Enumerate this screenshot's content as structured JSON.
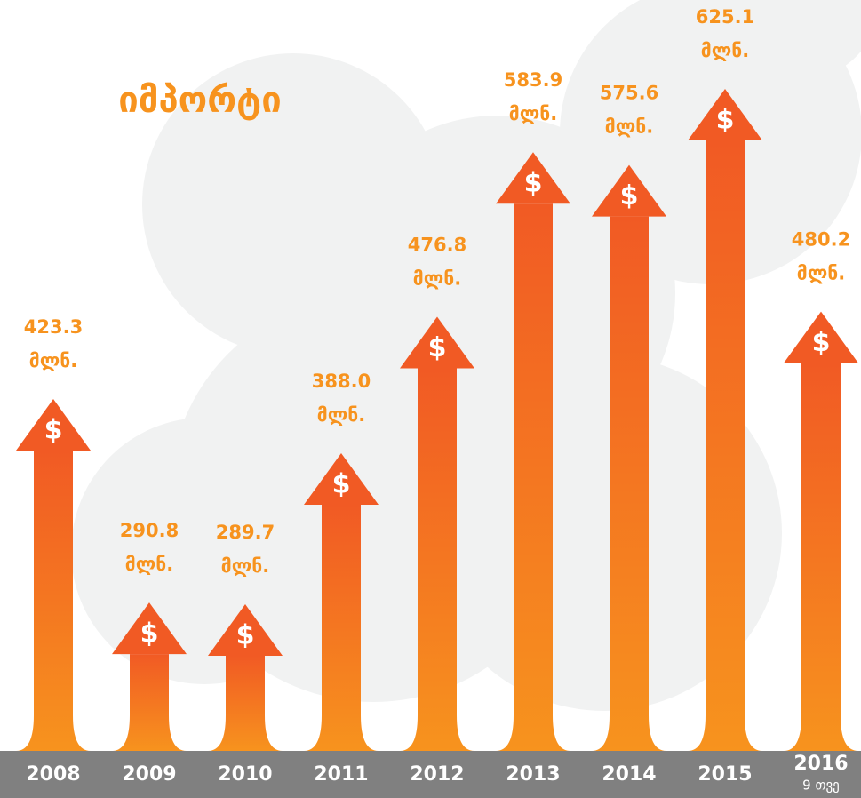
{
  "chart_data": {
    "type": "bar",
    "title": "იმპორტი",
    "categories": [
      "2008",
      "2009",
      "2010",
      "2011",
      "2012",
      "2013",
      "2014",
      "2015",
      "2016"
    ],
    "values": [
      423.3,
      290.8,
      289.7,
      388.0,
      476.8,
      583.9,
      575.6,
      625.1,
      480.2
    ],
    "value_labels": [
      "423.3",
      "290.8",
      "289.7",
      "388.0",
      "476.8",
      "583.9",
      "575.6",
      "625.1",
      "480.2"
    ],
    "unit": "მლნ.",
    "period_note": "9 თვე",
    "color": "#f15a24"
  }
}
